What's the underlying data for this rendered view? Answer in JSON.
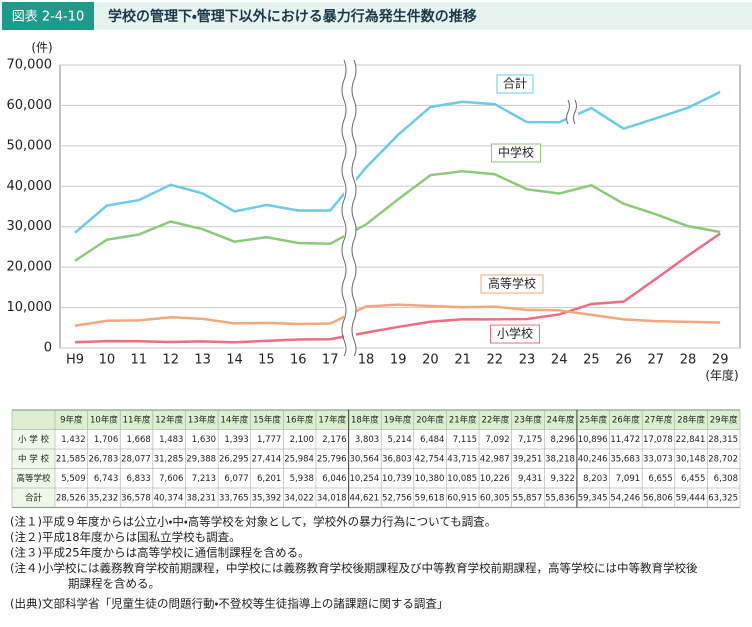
{
  "header": {
    "label": "図表 2-4-10",
    "title": "学校の管理下・管理下以外における暴力行為発生件数の推移"
  },
  "chart_data": {
    "type": "line",
    "y_unit": "(件)",
    "x_unit": "(年度)",
    "categories": [
      "H9",
      "10",
      "11",
      "12",
      "13",
      "14",
      "15",
      "16",
      "17",
      "18",
      "19",
      "20",
      "21",
      "22",
      "23",
      "24",
      "25",
      "26",
      "27",
      "28",
      "29"
    ],
    "ylim": [
      0,
      70000
    ],
    "yticks": [
      0,
      {
        "value": 10000,
        "label": "10,000"
      },
      {
        "value": 20000,
        "label": "20,000"
      },
      {
        "value": 30000,
        "label": "30,000"
      },
      {
        "value": 40000,
        "label": "40,000"
      },
      {
        "value": 50000,
        "label": "50,000"
      },
      {
        "value": 60000,
        "label": "60,000"
      },
      {
        "value": 70000,
        "label": "70,000"
      }
    ],
    "grid": true,
    "series": [
      {
        "name": "小学校",
        "color": "#f06c80",
        "values": [
          1432,
          1706,
          1668,
          1483,
          1630,
          1393,
          1777,
          2100,
          2176,
          3803,
          5214,
          6484,
          7115,
          7092,
          7175,
          8296,
          10896,
          11472,
          17078,
          22841,
          28315
        ],
        "value_labels": [
          "1,432",
          "1,706",
          "1,668",
          "1,483",
          "1,630",
          "1,393",
          "1,777",
          "2,100",
          "2,176",
          "3,803",
          "5,214",
          "6,484",
          "7,115",
          "7,092",
          "7,175",
          "8,296",
          "10,896",
          "11,472",
          "17,078",
          "22,841",
          "28,315"
        ]
      },
      {
        "name": "中学校",
        "color": "#8dc97a",
        "values": [
          21585,
          26783,
          28077,
          31285,
          29388,
          26295,
          27414,
          25984,
          25796,
          30564,
          36803,
          42754,
          43715,
          42987,
          39251,
          38218,
          40246,
          35683,
          33073,
          30148,
          28702
        ],
        "value_labels": [
          "21,585",
          "26,783",
          "28,077",
          "31,285",
          "29,388",
          "26,295",
          "27,414",
          "25,984",
          "25,796",
          "30,564",
          "36,803",
          "42,754",
          "43,715",
          "42,987",
          "39,251",
          "38,218",
          "40,246",
          "35,683",
          "33,073",
          "30,148",
          "28,702"
        ]
      },
      {
        "name": "高等学校",
        "color": "#f5a77c",
        "values": [
          5509,
          6743,
          6833,
          7606,
          7213,
          6077,
          6201,
          5938,
          6046,
          10254,
          10739,
          10380,
          10085,
          10226,
          9431,
          9322,
          8203,
          7091,
          6655,
          6455,
          6308
        ],
        "value_labels": [
          "5,509",
          "6,743",
          "6,833",
          "7,606",
          "7,213",
          "6,077",
          "6,201",
          "5,938",
          "6,046",
          "10,254",
          "10,739",
          "10,380",
          "10,085",
          "10,226",
          "9,431",
          "9,322",
          "8,203",
          "7,091",
          "6,655",
          "6,455",
          "6,308"
        ]
      },
      {
        "name": "合計",
        "color": "#6ccbe8",
        "values": [
          28526,
          35232,
          36578,
          40374,
          38231,
          33765,
          35392,
          34022,
          34018,
          44621,
          52756,
          59618,
          60915,
          60305,
          55857,
          55836,
          59345,
          54246,
          56806,
          59444,
          63325
        ],
        "value_labels": [
          "28,526",
          "35,232",
          "36,578",
          "40,374",
          "38,231",
          "33,765",
          "35,392",
          "34,022",
          "34,018",
          "44,621",
          "52,756",
          "59,618",
          "60,915",
          "60,305",
          "55,857",
          "55,836",
          "59,345",
          "54,246",
          "56,806",
          "59,444",
          "63,325"
        ]
      }
    ]
  },
  "table": {
    "columns": [
      "9年度",
      "10年度",
      "11年度",
      "12年度",
      "13年度",
      "14年度",
      "15年度",
      "16年度",
      "17年度",
      "18年度",
      "19年度",
      "20年度",
      "21年度",
      "22年度",
      "23年度",
      "24年度",
      "25年度",
      "26年度",
      "27年度",
      "28年度",
      "29年度"
    ],
    "row_labels": [
      "小 学 校",
      "中 学 校",
      "高等学校",
      "合計"
    ]
  },
  "notes": [
    "(注１)平成９年度からは公立小・中・高等学校を対象として，学校外の暴力行為についても調査。",
    "(注２)平成18年度からは国私立学校も調査。",
    "(注３)平成25年度からは高等学校に通信制課程を含める。",
    "(注４)小学校には義務教育学校前期課程，中学校には義務教育学校後期課程及び中等教育学校前期課程，高等学校には中等教育学校後",
    "期課程を含める。"
  ],
  "source": "(出典)文部科学省「児童生徒の問題行動・不登校等生徒指導上の諸課題に関する調査」"
}
